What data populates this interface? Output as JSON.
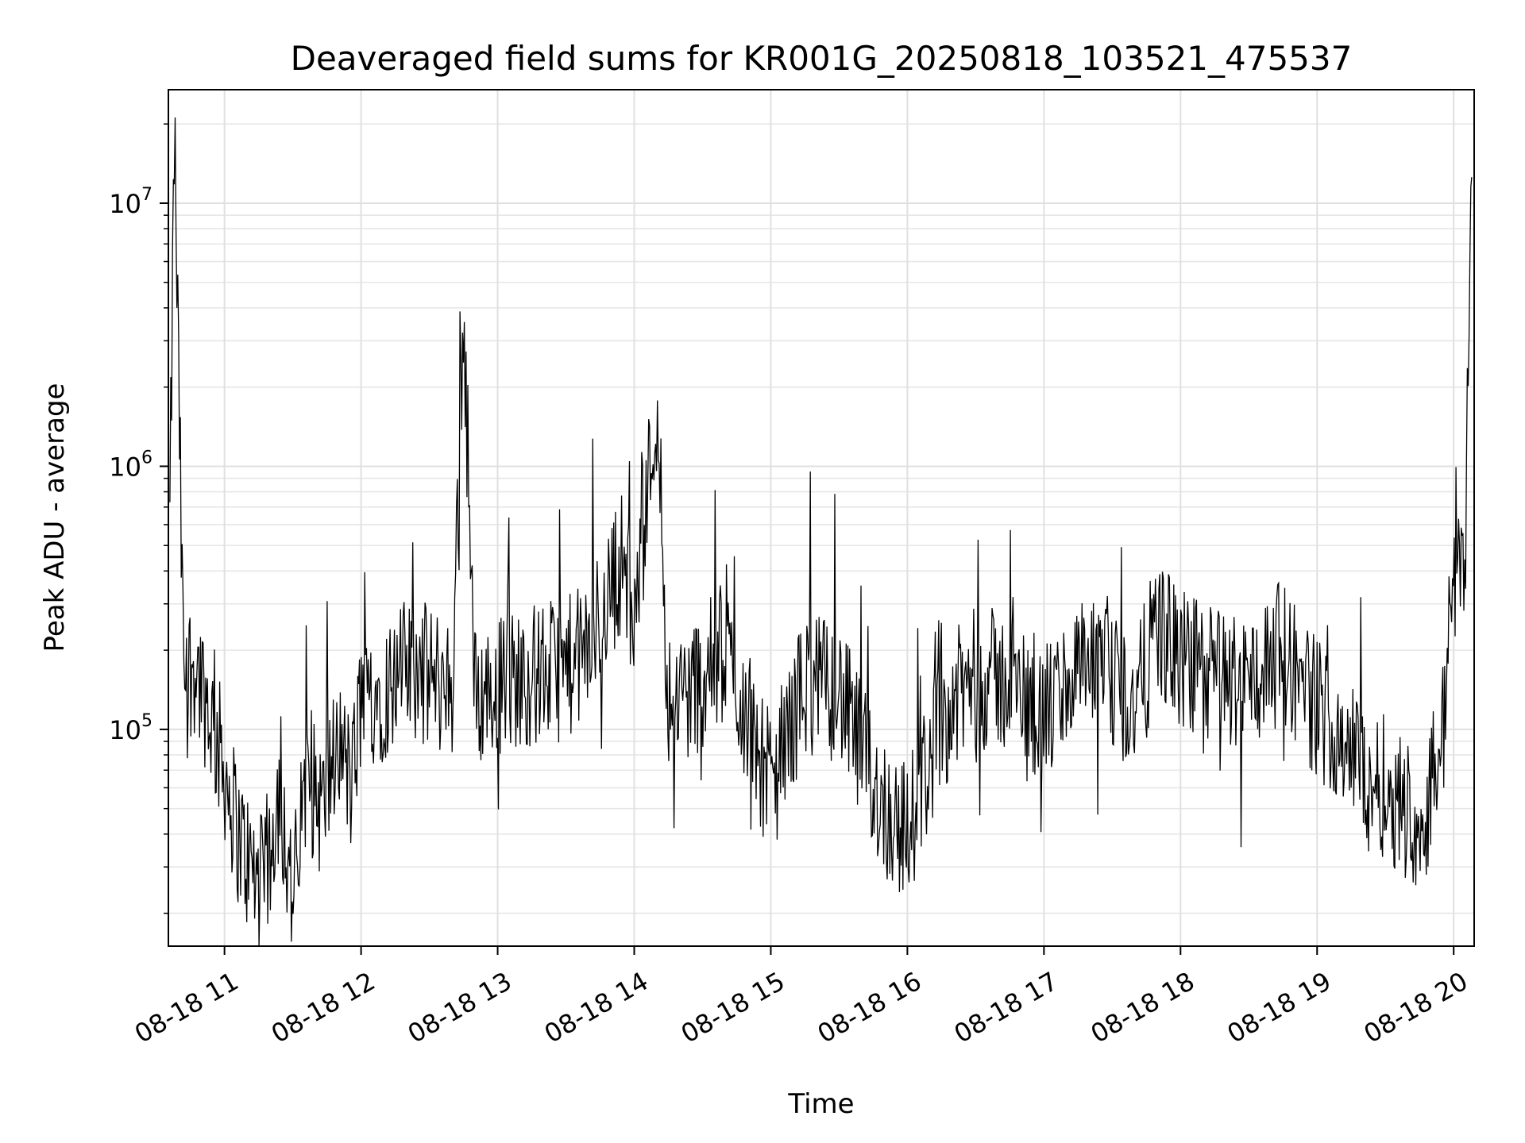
{
  "chart_data": {
    "type": "line",
    "title": "Deaveraged field sums for KR001G_20250818_103521_475537",
    "xlabel": "Time",
    "ylabel": "Peak ADU - average",
    "yscale": "log",
    "ylim": [
      15000,
      27000000
    ],
    "xlim": [
      "2025-08-18 10:35:21",
      "2025-08-18 20:09:00"
    ],
    "grid": true,
    "grid_minor": true,
    "line_color": "#000000",
    "x_ticks": [
      {
        "label": "08-18 11",
        "value": "2025-08-18 11:00"
      },
      {
        "label": "08-18 12",
        "value": "2025-08-18 12:00"
      },
      {
        "label": "08-18 13",
        "value": "2025-08-18 13:00"
      },
      {
        "label": "08-18 14",
        "value": "2025-08-18 14:00"
      },
      {
        "label": "08-18 15",
        "value": "2025-08-18 15:00"
      },
      {
        "label": "08-18 16",
        "value": "2025-08-18 16:00"
      },
      {
        "label": "08-18 17",
        "value": "2025-08-18 17:00"
      },
      {
        "label": "08-18 18",
        "value": "2025-08-18 18:00"
      },
      {
        "label": "08-18 19",
        "value": "2025-08-18 19:00"
      },
      {
        "label": "08-18 20",
        "value": "2025-08-18 20:00"
      }
    ],
    "y_ticks": [
      {
        "base": "10",
        "exp": "5",
        "value": 100000
      },
      {
        "base": "10",
        "exp": "6",
        "value": 1000000
      },
      {
        "base": "10",
        "exp": "7",
        "value": 10000000
      }
    ],
    "series": [
      {
        "x": [
          "2025-08-18 10:36",
          "2025-08-18 10:38",
          "2025-08-18 10:42",
          "2025-08-18 10:47",
          "2025-08-18 10:53",
          "2025-08-18 11:00",
          "2025-08-18 11:06",
          "2025-08-18 11:11",
          "2025-08-18 11:17",
          "2025-08-18 11:24",
          "2025-08-18 11:30",
          "2025-08-18 11:36",
          "2025-08-18 11:43",
          "2025-08-18 11:50",
          "2025-08-18 11:56",
          "2025-08-18 12:00",
          "2025-08-18 12:10",
          "2025-08-18 12:20",
          "2025-08-18 12:30",
          "2025-08-18 12:40",
          "2025-08-18 12:45",
          "2025-08-18 12:50",
          "2025-08-18 13:00",
          "2025-08-18 13:15",
          "2025-08-18 13:30",
          "2025-08-18 13:40",
          "2025-08-18 13:50",
          "2025-08-18 13:55",
          "2025-08-18 14:00",
          "2025-08-18 14:10",
          "2025-08-18 14:15",
          "2025-08-18 14:25",
          "2025-08-18 14:40",
          "2025-08-18 14:50",
          "2025-08-18 15:00",
          "2025-08-18 15:15",
          "2025-08-18 15:30",
          "2025-08-18 15:40",
          "2025-08-18 15:50",
          "2025-08-18 16:00",
          "2025-08-18 16:15",
          "2025-08-18 16:30",
          "2025-08-18 16:45",
          "2025-08-18 17:00",
          "2025-08-18 17:15",
          "2025-08-18 17:30",
          "2025-08-18 17:40",
          "2025-08-18 17:50",
          "2025-08-18 18:00",
          "2025-08-18 18:15",
          "2025-08-18 18:30",
          "2025-08-18 18:45",
          "2025-08-18 19:00",
          "2025-08-18 19:10",
          "2025-08-18 19:20",
          "2025-08-18 19:30",
          "2025-08-18 19:40",
          "2025-08-18 19:45",
          "2025-08-18 19:55",
          "2025-08-18 20:00",
          "2025-08-18 20:05",
          "2025-08-18 20:08"
        ],
        "y": [
          600000,
          19000000,
          160000,
          180000,
          120000,
          70000,
          40000,
          30000,
          25000,
          60000,
          22000,
          65000,
          50000,
          90000,
          60000,
          130000,
          140000,
          170000,
          160000,
          140000,
          3800000,
          130000,
          150000,
          160000,
          170000,
          200000,
          350000,
          450000,
          250000,
          1800000,
          130000,
          140000,
          200000,
          110000,
          60000,
          150000,
          140000,
          80000,
          50000,
          40000,
          110000,
          160000,
          150000,
          110000,
          170000,
          150000,
          120000,
          250000,
          180000,
          160000,
          150000,
          200000,
          120000,
          100000,
          70000,
          60000,
          50000,
          40000,
          90000,
          400000,
          500000,
          15000000
        ]
      }
    ]
  }
}
